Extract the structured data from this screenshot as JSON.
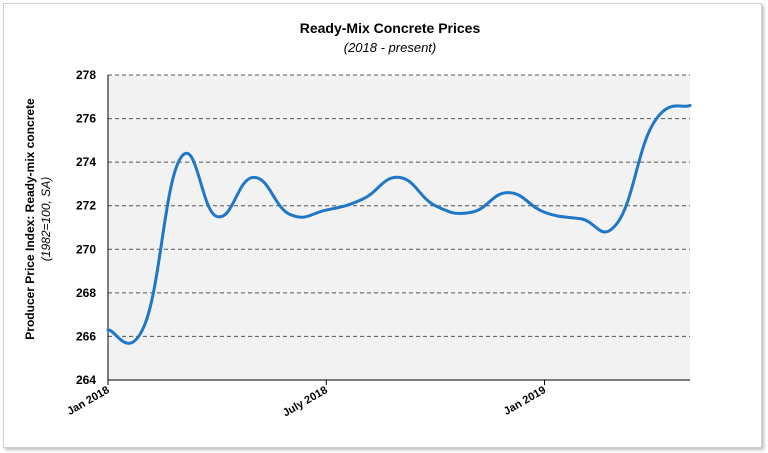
{
  "chart_data": {
    "type": "line",
    "title": "Ready-Mix Concrete Prices",
    "subtitle": "(2018 - present)",
    "ylabel": "Producer Price Index: Ready-mix concrete",
    "ylabel_sub": "(1982=100, SA)",
    "xlabel": "",
    "ylim": [
      264,
      278
    ],
    "yticks": [
      "264",
      "266",
      "268",
      "270",
      "272",
      "274",
      "276",
      "278"
    ],
    "x_tick_labels": [
      {
        "label": "Jan 2018",
        "month_index": 0
      },
      {
        "label": "July 2018",
        "month_index": 6
      },
      {
        "label": "Jan 2019",
        "month_index": 12
      }
    ],
    "x_max_month_index": 16,
    "grid": true,
    "series": [
      {
        "color": "#1f77c8",
        "points": [
          {
            "month_index": 0,
            "value": 266.3
          },
          {
            "month_index": 1,
            "value": 266.5
          },
          {
            "month_index": 2,
            "value": 274.2
          },
          {
            "month_index": 3,
            "value": 271.5
          },
          {
            "month_index": 4,
            "value": 273.3
          },
          {
            "month_index": 5,
            "value": 271.6
          },
          {
            "month_index": 6,
            "value": 271.8
          },
          {
            "month_index": 7,
            "value": 272.3
          },
          {
            "month_index": 8,
            "value": 273.3
          },
          {
            "month_index": 9,
            "value": 272.0
          },
          {
            "month_index": 10,
            "value": 271.7
          },
          {
            "month_index": 11,
            "value": 272.6
          },
          {
            "month_index": 12,
            "value": 271.7
          },
          {
            "month_index": 13,
            "value": 271.4
          },
          {
            "month_index": 14,
            "value": 271.2
          },
          {
            "month_index": 15,
            "value": 275.8
          },
          {
            "month_index": 16,
            "value": 276.6
          }
        ]
      }
    ]
  }
}
